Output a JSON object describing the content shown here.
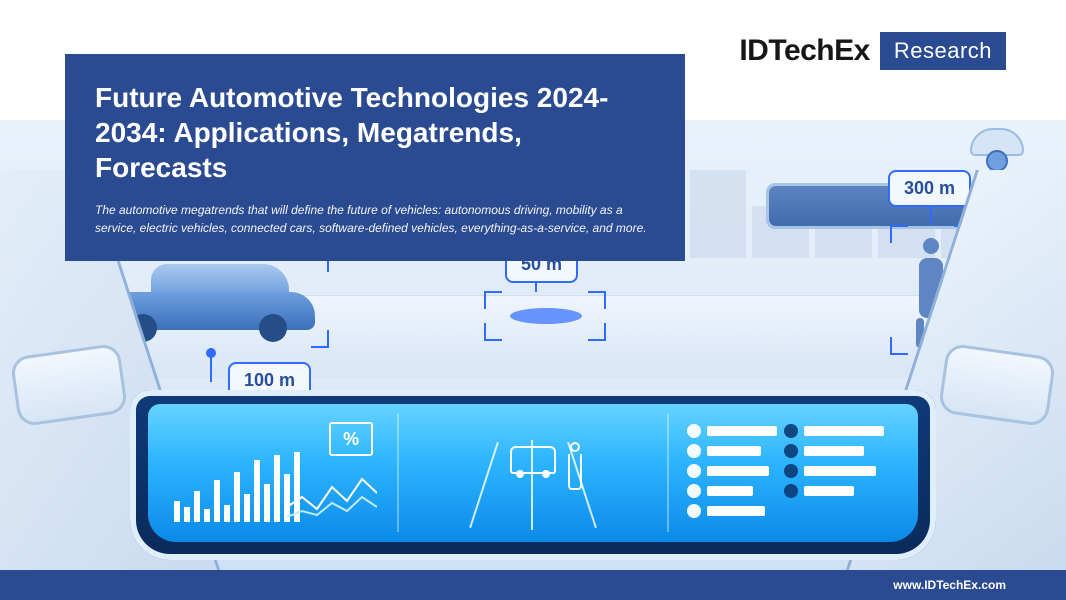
{
  "brand": {
    "name": "IDTechEx",
    "badge": "Research"
  },
  "title": "Future Automotive Technologies 2024-2034: Applications, Megatrends, Forecasts",
  "subtitle": "The automotive megatrends that will define the future of vehicles: autonomous driving, mobility as a service, electric vehicles, connected cars, software-defined vehicles, everything-as-a-service, and more.",
  "footer": "www.IDTechEx.com",
  "colors": {
    "brand_blue": "#2a4a92",
    "accent_blue": "#2f6bff",
    "hud_cyan_top": "#65d3ff",
    "hud_cyan_bottom": "#0a8ae8",
    "sky": "#e9f2fb"
  },
  "detections": {
    "car": {
      "distance": "100 m"
    },
    "object": {
      "distance": "50 m"
    },
    "pedestrian": {
      "distance": "300 m"
    }
  },
  "hud": {
    "percent_label": "%",
    "bars": [
      30,
      22,
      44,
      18,
      60,
      25,
      72,
      40,
      88,
      55,
      96,
      68,
      100
    ],
    "list_left_widths": [
      70,
      54,
      62,
      46,
      58
    ],
    "list_right_widths": [
      80,
      60,
      72,
      50
    ]
  },
  "skyline_heights": [
    40,
    70,
    55,
    90,
    60,
    100,
    48,
    80,
    58,
    72,
    45,
    88,
    52,
    66,
    40,
    78,
    50
  ]
}
